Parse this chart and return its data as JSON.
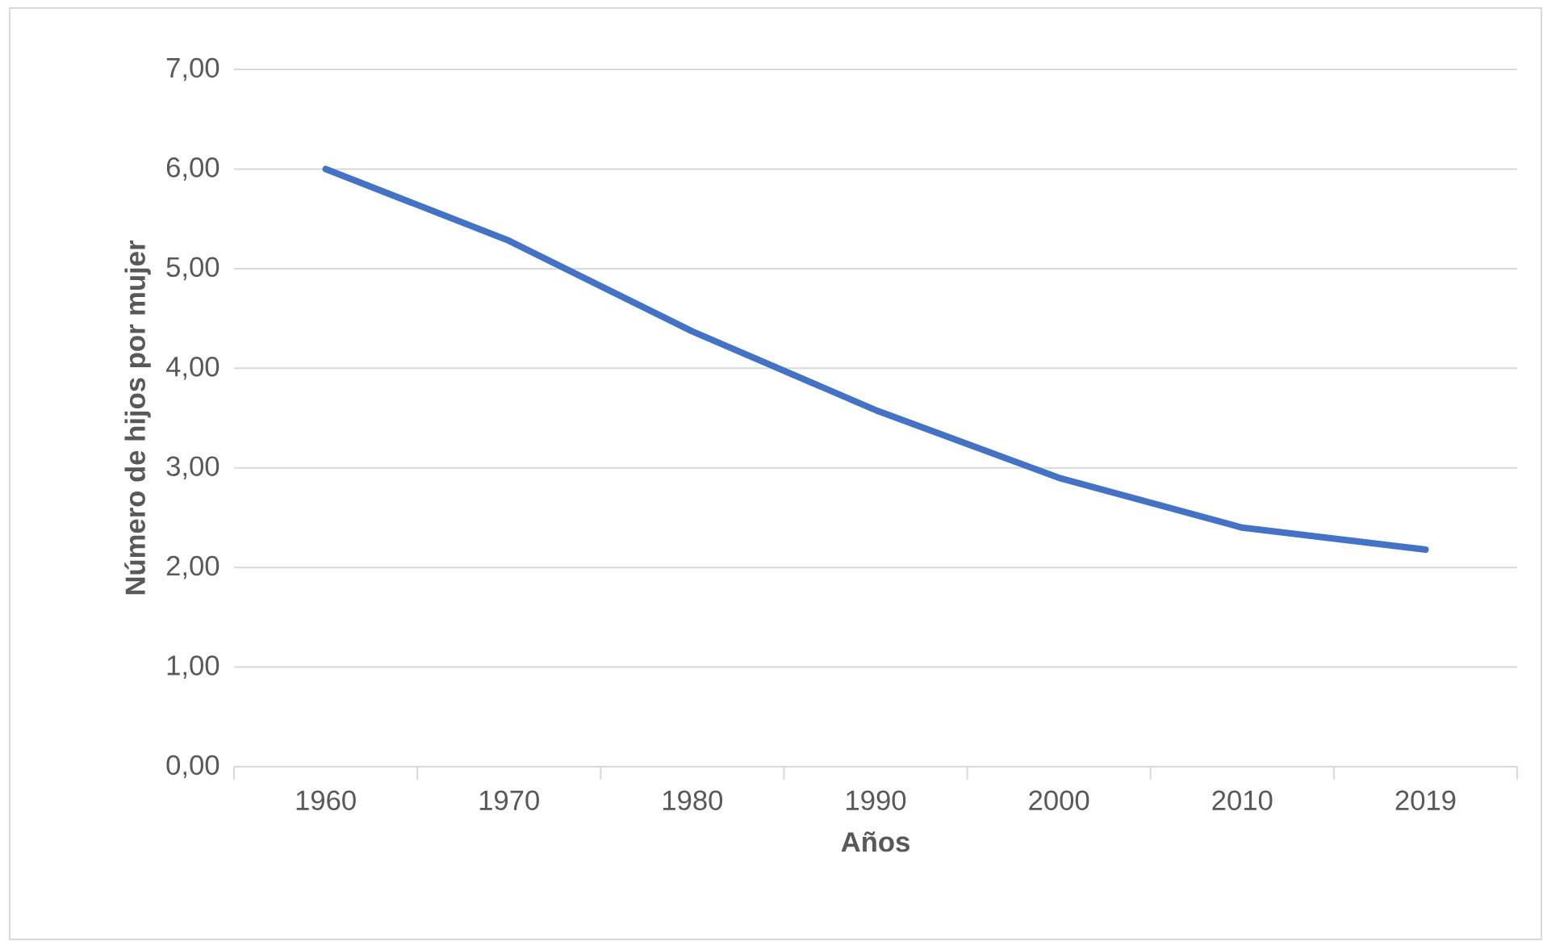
{
  "chart_data": {
    "type": "line",
    "xlabel": "Años",
    "ylabel": "Número de hijos por mujer",
    "categories": [
      "1960",
      "1970",
      "1980",
      "1990",
      "2000",
      "2010",
      "2019"
    ],
    "series": [
      {
        "color": "#4472c4",
        "values": [
          6.0,
          5.28,
          4.37,
          3.58,
          2.9,
          2.4,
          2.18
        ]
      }
    ],
    "ylim": [
      0,
      7
    ],
    "yticks": [
      {
        "value": 0,
        "label": "0,00"
      },
      {
        "value": 1,
        "label": "1,00"
      },
      {
        "value": 2,
        "label": "2,00"
      },
      {
        "value": 3,
        "label": "3,00"
      },
      {
        "value": 4,
        "label": "4,00"
      },
      {
        "value": 5,
        "label": "5,00"
      },
      {
        "value": 6,
        "label": "6,00"
      },
      {
        "value": 7,
        "label": "7,00"
      }
    ],
    "grid": "y",
    "marker": "none",
    "line_style": "solid"
  }
}
